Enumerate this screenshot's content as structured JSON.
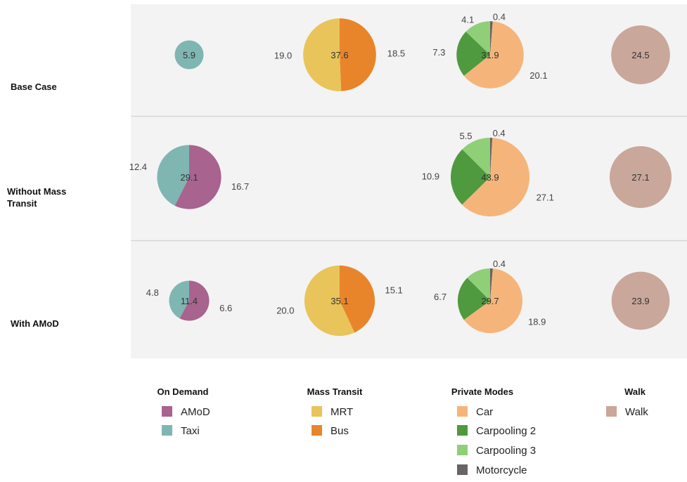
{
  "chart_data": {
    "type": "pie",
    "rows": [
      {
        "label_lines": [
          "Base Case"
        ]
      },
      {
        "label_lines": [
          "Without Mass",
          "Transit"
        ]
      },
      {
        "label_lines": [
          "With AMoD"
        ]
      }
    ],
    "columns": [
      "On Demand",
      "Mass Transit",
      "Private Modes",
      "Walk"
    ],
    "colors": {
      "AMoD": "#a8638f",
      "Taxi": "#7fb6b1",
      "MRT": "#e8c45a",
      "Bus": "#e8852a",
      "Car": "#f5b57a",
      "Carpooling 2": "#4f9a3e",
      "Carpooling 3": "#8fcf78",
      "Motorcycle": "#6a6363",
      "Walk": "#c9a79a"
    },
    "pies": [
      {
        "row": 0,
        "col": 0,
        "total": "5.9",
        "slices": [
          {
            "name": "Taxi",
            "value": 5.9
          }
        ]
      },
      {
        "row": 0,
        "col": 1,
        "total": "37.6",
        "slices": [
          {
            "name": "Bus",
            "value": 18.5,
            "label": "18.5"
          },
          {
            "name": "MRT",
            "value": 19.0,
            "label": "19.0"
          }
        ]
      },
      {
        "row": 0,
        "col": 2,
        "total": "31.9",
        "slices": [
          {
            "name": "Motorcycle",
            "value": 0.4,
            "label": "0.4"
          },
          {
            "name": "Car",
            "value": 20.1,
            "label": "20.1"
          },
          {
            "name": "Carpooling 2",
            "value": 7.3,
            "label": "7.3"
          },
          {
            "name": "Carpooling 3",
            "value": 4.1,
            "label": "4.1"
          }
        ]
      },
      {
        "row": 0,
        "col": 3,
        "total": "24.5",
        "slices": [
          {
            "name": "Walk",
            "value": 24.5
          }
        ]
      },
      {
        "row": 1,
        "col": 0,
        "total": "29.1",
        "slices": [
          {
            "name": "AMoD",
            "value": 16.7,
            "label": "16.7"
          },
          {
            "name": "Taxi",
            "value": 12.4,
            "label": "12.4"
          }
        ]
      },
      {
        "row": 1,
        "col": 2,
        "total": "43.9",
        "slices": [
          {
            "name": "Motorcycle",
            "value": 0.4,
            "label": "0.4"
          },
          {
            "name": "Car",
            "value": 27.1,
            "label": "27.1"
          },
          {
            "name": "Carpooling 2",
            "value": 10.9,
            "label": "10.9"
          },
          {
            "name": "Carpooling 3",
            "value": 5.5,
            "label": "5.5"
          }
        ]
      },
      {
        "row": 1,
        "col": 3,
        "total": "27.1",
        "slices": [
          {
            "name": "Walk",
            "value": 27.1
          }
        ]
      },
      {
        "row": 2,
        "col": 0,
        "total": "11.4",
        "slices": [
          {
            "name": "AMoD",
            "value": 6.6,
            "label": "6.6"
          },
          {
            "name": "Taxi",
            "value": 4.8,
            "label": "4.8"
          }
        ]
      },
      {
        "row": 2,
        "col": 1,
        "total": "35.1",
        "slices": [
          {
            "name": "Bus",
            "value": 15.1,
            "label": "15.1"
          },
          {
            "name": "MRT",
            "value": 20.0,
            "label": "20.0"
          }
        ]
      },
      {
        "row": 2,
        "col": 2,
        "total": "29.7",
        "slices": [
          {
            "name": "Motorcycle",
            "value": 0.4,
            "label": "0.4"
          },
          {
            "name": "Car",
            "value": 18.9,
            "label": "18.9"
          },
          {
            "name": "Carpooling 2",
            "value": 6.7,
            "label": "6.7"
          },
          {
            "name": "Carpooling 3",
            "value": 3.7
          }
        ]
      },
      {
        "row": 2,
        "col": 3,
        "total": "23.9",
        "slices": [
          {
            "name": "Walk",
            "value": 23.9
          }
        ]
      }
    ],
    "legend": [
      {
        "title": "On Demand",
        "items": [
          "AMoD",
          "Taxi"
        ]
      },
      {
        "title": "Mass Transit",
        "items": [
          "MRT",
          "Bus"
        ]
      },
      {
        "title": "Private Modes",
        "items": [
          "Car",
          "Carpooling 2",
          "Carpooling 3",
          "Motorcycle"
        ]
      },
      {
        "title": "Walk",
        "items": [
          "Walk"
        ]
      }
    ]
  }
}
